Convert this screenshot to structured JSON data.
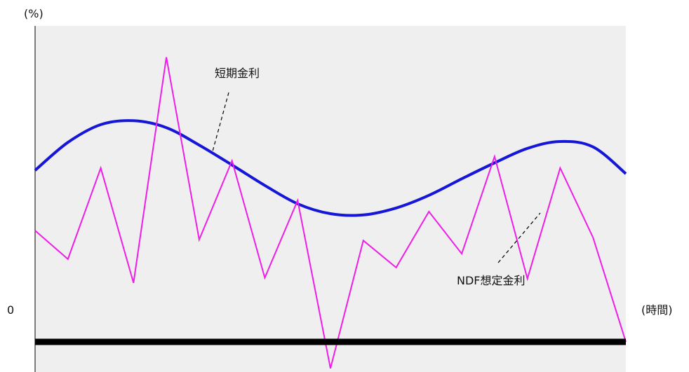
{
  "chart_data": {
    "type": "line",
    "title": "",
    "y_unit_label": "(%)",
    "x_unit_label": "(時間)",
    "zero_label": "0",
    "ylim": [
      -10,
      105
    ],
    "xlim": [
      0,
      18
    ],
    "grid": false,
    "legend": "none",
    "plot_background": "#efefef",
    "zero_line_color": "#000000",
    "series": [
      {
        "name": "短期金利",
        "color": "#1616d8",
        "smooth": true,
        "x": [
          0,
          1,
          2,
          3,
          4,
          5,
          6,
          7,
          8,
          9,
          10,
          11,
          12,
          13,
          14,
          15,
          16,
          17,
          18
        ],
        "values": [
          57.0,
          66.3,
          72.2,
          73.5,
          71.2,
          65.4,
          58.8,
          52.0,
          45.9,
          42.6,
          42.2,
          44.5,
          48.7,
          54.2,
          59.5,
          64.3,
          66.6,
          64.8,
          55.9
        ]
      },
      {
        "name": "NDF想定金利",
        "color": "#ee1ee8",
        "smooth": false,
        "x": [
          0,
          1,
          2,
          3,
          4,
          5,
          6,
          7,
          8,
          9,
          10,
          11,
          12,
          13,
          14,
          15,
          16,
          17,
          18
        ],
        "values": [
          37.0,
          27.5,
          57.8,
          19.6,
          94.6,
          34.0,
          60.2,
          21.3,
          47.0,
          -8.8,
          33.7,
          24.7,
          43.3,
          29.3,
          61.6,
          21.0,
          57.8,
          34.7,
          0
        ]
      }
    ],
    "annotations": [
      {
        "text": "短期金利",
        "points_to": "短期金利"
      },
      {
        "text": "NDF想定金利",
        "points_to": "NDF想定金利"
      }
    ]
  }
}
